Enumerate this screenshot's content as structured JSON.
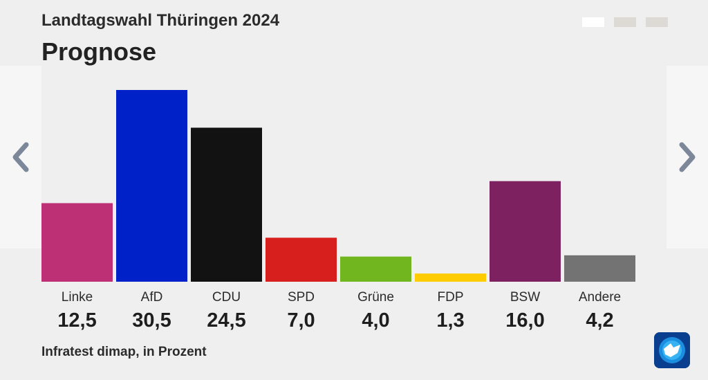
{
  "header": {
    "subtitle": "Landtagswahl Thüringen 2024",
    "title": "Prognose"
  },
  "pagination": {
    "count": 3,
    "active_index": 0
  },
  "navigation": {
    "prev_icon": "chevron-left-icon",
    "next_icon": "chevron-right-icon"
  },
  "chart_data": {
    "type": "bar",
    "title": "Prognose",
    "subtitle": "Landtagswahl Thüringen 2024",
    "categories": [
      "Linke",
      "AfD",
      "CDU",
      "SPD",
      "Grüne",
      "FDP",
      "BSW",
      "Andere"
    ],
    "values": [
      12.5,
      30.5,
      24.5,
      7.0,
      4.0,
      1.3,
      16.0,
      4.2
    ],
    "value_labels": [
      "12,5",
      "30,5",
      "24,5",
      "7,0",
      "4,0",
      "1,3",
      "16,0",
      "4,2"
    ],
    "colors": [
      "#be3075",
      "#0021c8",
      "#121212",
      "#d71f1d",
      "#71b61e",
      "#ffcc00",
      "#7d2160",
      "#737373"
    ],
    "ylim": [
      0,
      30.5
    ],
    "grid": false,
    "legend": "none"
  },
  "footer": {
    "source": "Infratest dimap, in Prozent"
  },
  "logo": {
    "icon": "tagesschau-logo-icon"
  }
}
